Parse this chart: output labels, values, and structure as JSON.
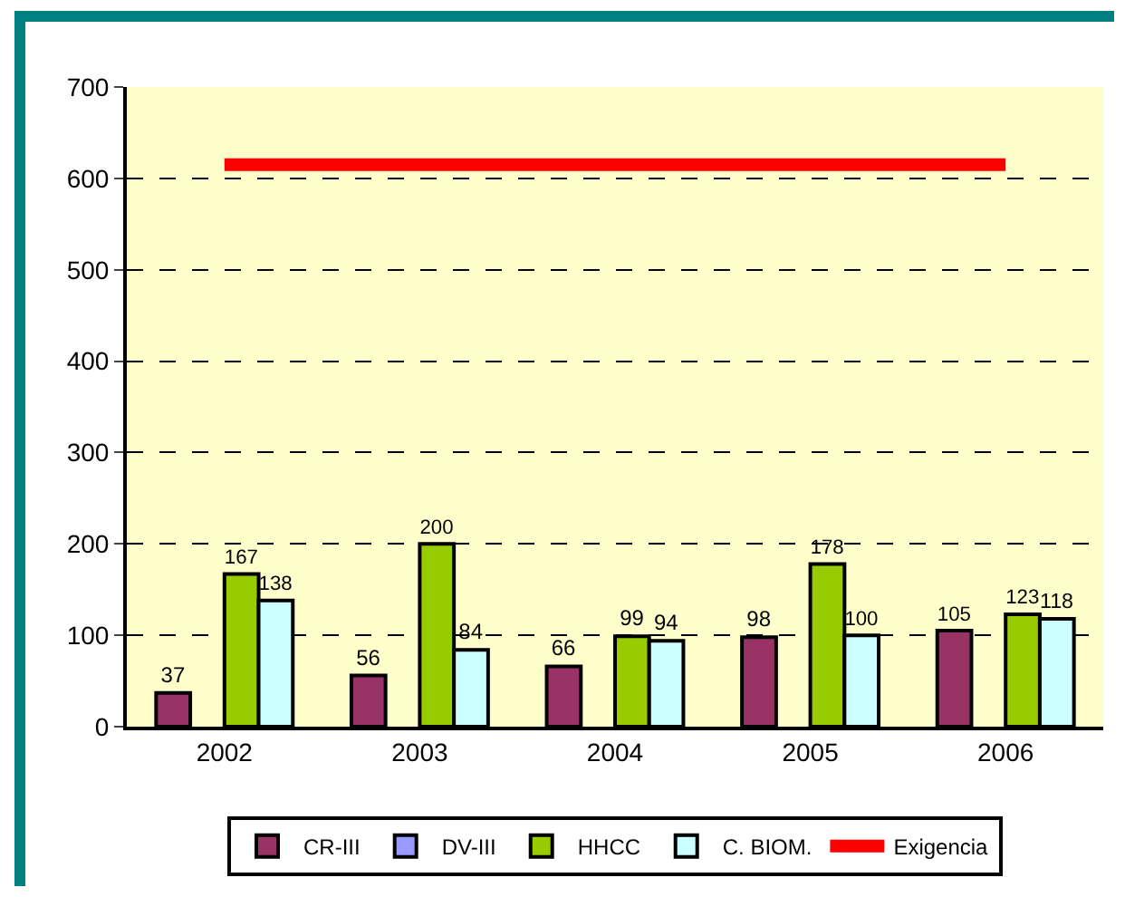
{
  "chart_data": {
    "type": "bar",
    "categories": [
      "2002",
      "2003",
      "2004",
      "2005",
      "2006"
    ],
    "series": [
      {
        "name": "CR-III",
        "color": "#993366",
        "values": [
          37,
          56,
          66,
          98,
          105
        ],
        "value_labels": [
          "37",
          "56",
          "66",
          "98",
          "105"
        ]
      },
      {
        "name": "DV-III",
        "color": "#9999ff",
        "values": [
          null,
          null,
          null,
          null,
          null
        ]
      },
      {
        "name": "HHCC",
        "color": "#99cc00",
        "values": [
          167,
          200,
          99,
          178,
          123
        ],
        "value_labels": [
          "167",
          "200",
          "99",
          "178",
          "123"
        ]
      },
      {
        "name": "C. BIOM.",
        "color": "#ccffff",
        "values": [
          138,
          84,
          94,
          100,
          118
        ],
        "value_labels": [
          "138",
          "84",
          "94",
          "100",
          "118"
        ]
      },
      {
        "name": "Exigencia",
        "type": "line",
        "color": "#ff0000",
        "values": [
          615,
          615,
          615,
          615,
          615
        ]
      }
    ],
    "ylim": [
      0,
      700
    ],
    "yticks": [
      0,
      100,
      200,
      300,
      400,
      500,
      600,
      700
    ],
    "grid": "y",
    "legend": "bottom",
    "line_style": "solid",
    "marker": "none"
  }
}
